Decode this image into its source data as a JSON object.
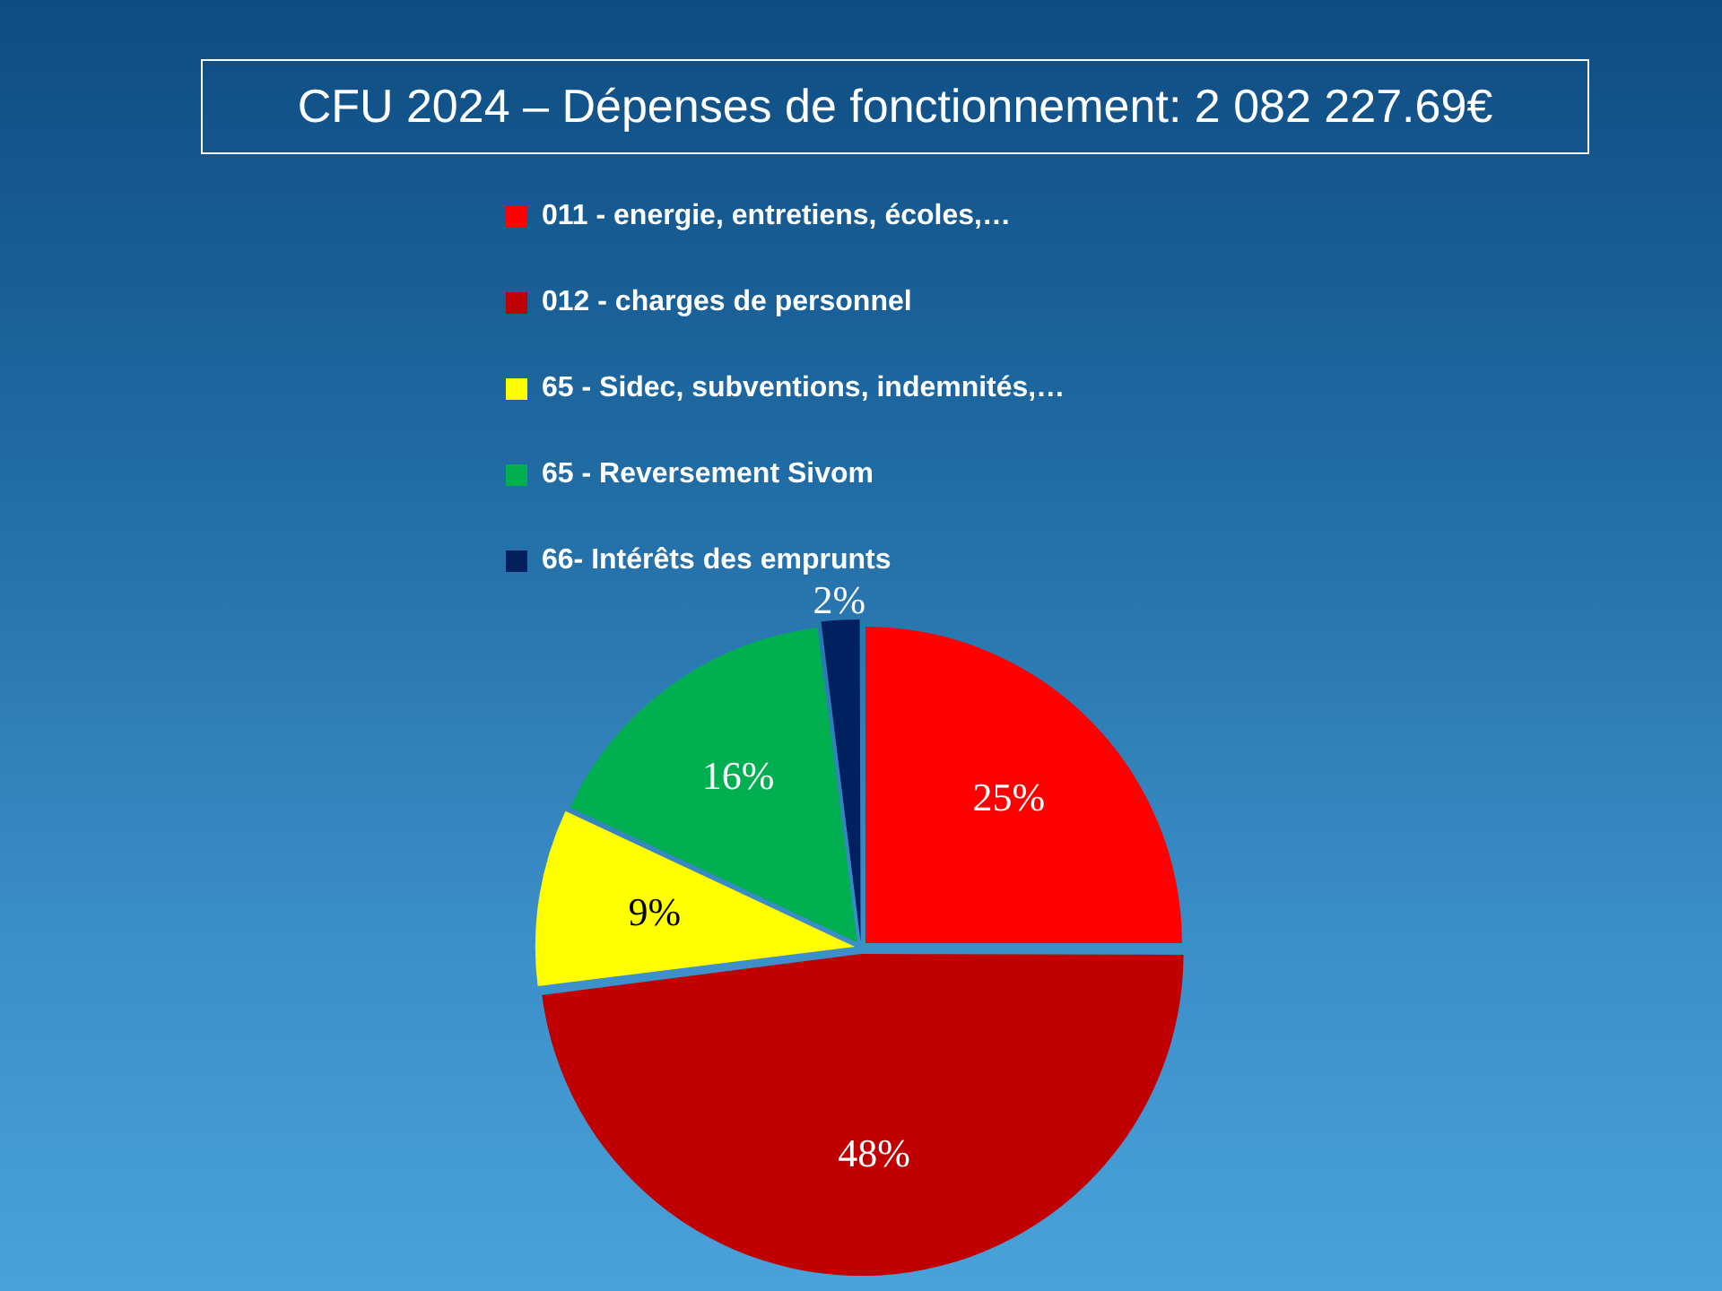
{
  "chart_data": {
    "type": "pie",
    "title": "CFU 2024 – Dépenses de fonctionnement: 2 082 227.69€",
    "categories": [
      "011 - energie, entretiens, écoles,…",
      "012 - charges de personnel",
      "65 - Sidec, subventions, indemnités,…",
      "65 - Reversement Sivom",
      "66- Intérêts des emprunts"
    ],
    "values": [
      25,
      48,
      9,
      16,
      2
    ],
    "value_labels": [
      "25%",
      "48%",
      "9%",
      "16%",
      "2%"
    ],
    "colors": [
      "#ff0000",
      "#c00000",
      "#ffff00",
      "#00b050",
      "#002060"
    ],
    "legend": "top"
  }
}
